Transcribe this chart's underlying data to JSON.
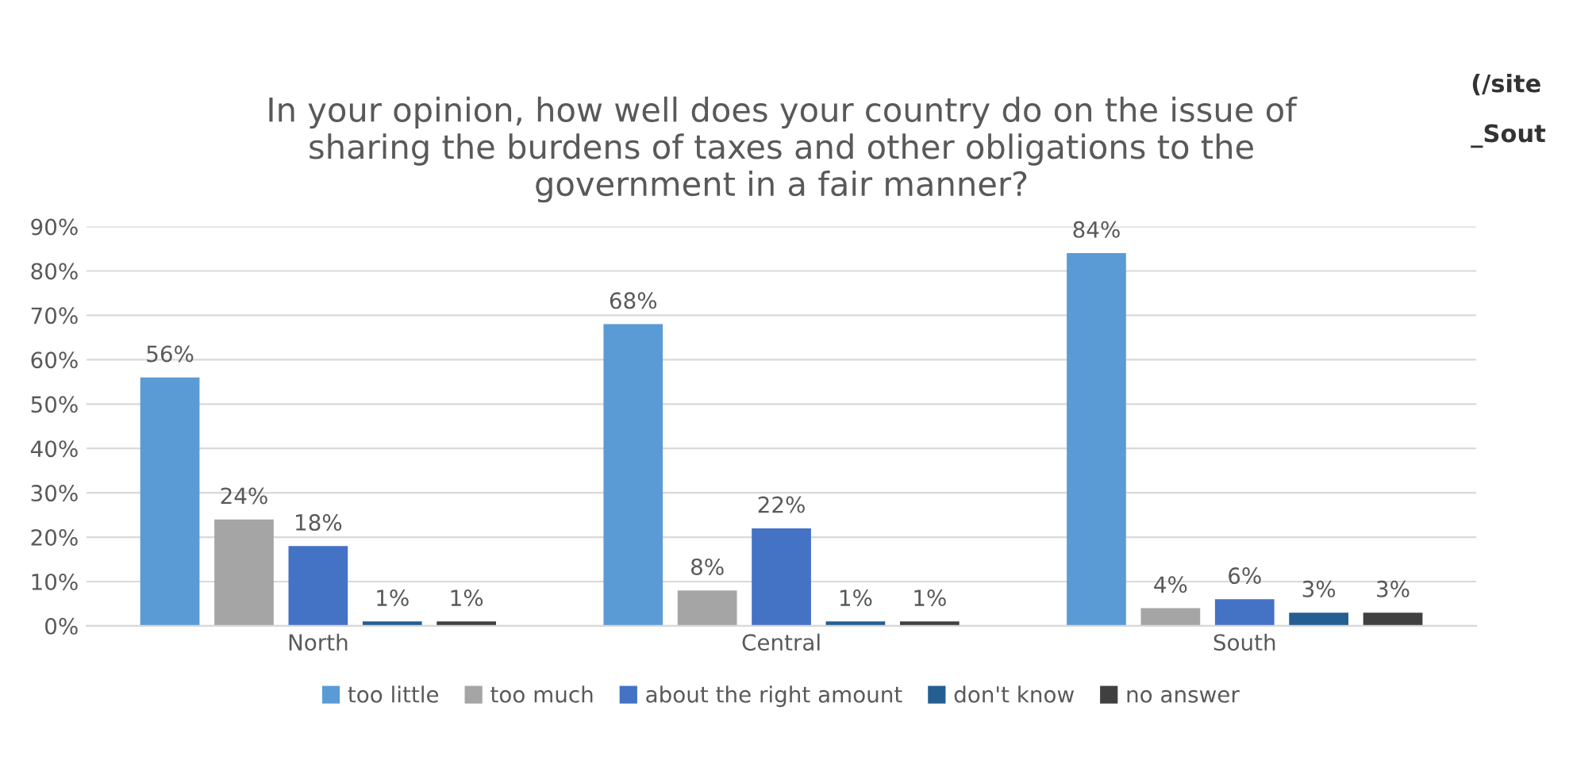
{
  "chart_data": {
    "type": "bar",
    "title": "In your opinion, how well does your country do on the issue of\nsharing the burdens of taxes and other obligations to the\ngovernment in a fair manner?",
    "categories": [
      "North",
      "Central",
      "South"
    ],
    "series": [
      {
        "name": "too little",
        "color": "#5b9bd5",
        "values": [
          56,
          68,
          84
        ],
        "value_labels": [
          "56%",
          "68%",
          "84%"
        ]
      },
      {
        "name": "too much",
        "color": "#a5a5a5",
        "values": [
          24,
          8,
          4
        ],
        "value_labels": [
          "24%",
          "8%",
          "4%"
        ]
      },
      {
        "name": "about the right amount",
        "color": "#4472c4",
        "values": [
          18,
          22,
          6
        ],
        "value_labels": [
          "18%",
          "22%",
          "6%"
        ]
      },
      {
        "name": "don't know",
        "color": "#255e91",
        "values": [
          1,
          1,
          3
        ],
        "value_labels": [
          "1%",
          "1%",
          "3%"
        ]
      },
      {
        "name": "no answer",
        "color": "#404040",
        "values": [
          1,
          1,
          3
        ],
        "value_labels": [
          "1%",
          "1%",
          "3%"
        ]
      }
    ],
    "ylim": [
      0,
      90
    ],
    "yticks": [
      {
        "value": 0,
        "label": "0%"
      },
      {
        "value": 10,
        "label": "10%"
      },
      {
        "value": 20,
        "label": "20%"
      },
      {
        "value": 30,
        "label": "30%"
      },
      {
        "value": 40,
        "label": "40%"
      },
      {
        "value": 50,
        "label": "50%"
      },
      {
        "value": 60,
        "label": "60%"
      },
      {
        "value": 70,
        "label": "70%"
      },
      {
        "value": 80,
        "label": "80%"
      },
      {
        "value": 90,
        "label": "90%"
      }
    ],
    "grid": "y",
    "legend": "bottom",
    "annotations": [
      "(/site",
      "_Sout"
    ]
  }
}
